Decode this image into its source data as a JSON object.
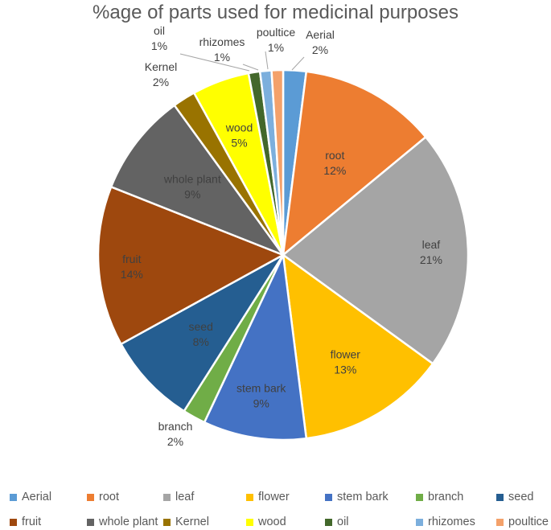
{
  "chart_data": {
    "type": "pie",
    "title": "%age of parts used for medicinal purposes",
    "slices": [
      {
        "name": "Aerial",
        "value": 2,
        "label": "2%",
        "color": "#5b9bd5",
        "label_color": "#404040"
      },
      {
        "name": "root",
        "value": 12,
        "label": "12%",
        "color": "#ed7d31",
        "label_color": "#404040"
      },
      {
        "name": "leaf",
        "value": 21,
        "label": "21%",
        "color": "#a5a5a5",
        "label_color": "#404040"
      },
      {
        "name": "flower",
        "value": 13,
        "label": "13%",
        "color": "#ffc000",
        "label_color": "#404040"
      },
      {
        "name": "stem bark",
        "value": 9,
        "label": "9%",
        "color": "#4472c4",
        "label_color": "#404040"
      },
      {
        "name": "branch",
        "value": 2,
        "label": "2%",
        "color": "#70ad47",
        "label_color": "#404040"
      },
      {
        "name": "seed",
        "value": 8,
        "label": "8%",
        "color": "#255e91",
        "label_color": "#404040"
      },
      {
        "name": "fruit",
        "value": 14,
        "label": "14%",
        "color": "#9e480e",
        "label_color": "#404040"
      },
      {
        "name": "whole plant",
        "value": 9,
        "label": "9%",
        "color": "#636363",
        "label_color": "#404040"
      },
      {
        "name": "Kernel",
        "value": 2,
        "label": "2%",
        "color": "#997300",
        "label_color": "#404040"
      },
      {
        "name": "wood",
        "value": 5,
        "label": "5%",
        "color": "#ffff00",
        "label_color": "#404040"
      },
      {
        "name": "oil",
        "value": 1,
        "label": "1%",
        "color": "#43682b",
        "label_color": "#404040"
      },
      {
        "name": "rhizomes",
        "value": 1,
        "label": "1%",
        "color": "#7cafdd",
        "label_color": "#404040"
      },
      {
        "name": "poultice",
        "value": 1,
        "label": "1%",
        "color": "#f4a16a",
        "label_color": "#404040"
      }
    ],
    "legend_position": "bottom",
    "start_angle_deg": 0,
    "direction": "clockwise"
  }
}
